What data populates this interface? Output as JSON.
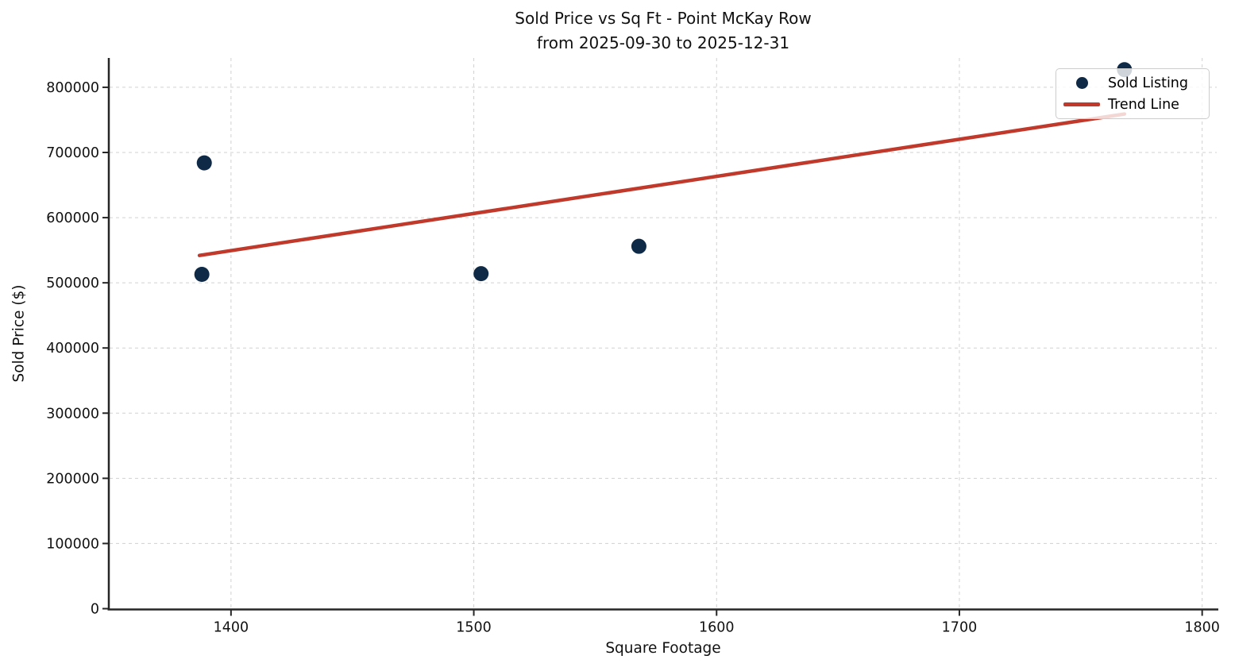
{
  "chart_data": {
    "type": "scatter",
    "title": "Sold Price vs Sq Ft - Point McKay Row",
    "subtitle": "from 2025-09-30 to 2025-12-31",
    "xlabel": "Square Footage",
    "ylabel": "Sold Price ($)",
    "xlim": [
      1350,
      1806
    ],
    "ylim": [
      0,
      845000
    ],
    "x_ticks": [
      1400,
      1500,
      1600,
      1700,
      1800
    ],
    "y_ticks": [
      0,
      100000,
      200000,
      300000,
      400000,
      500000,
      600000,
      700000,
      800000
    ],
    "grid": true,
    "grid_style": "dashed",
    "legend_position": "upper right",
    "background_color": "#ffffff",
    "grid_color": "#c9c9c9",
    "axis_color": "#262626",
    "text_color": "#111111",
    "series": [
      {
        "name": "Sold Listing",
        "kind": "scatter",
        "color": "#0E2A47",
        "marker_radius": 9.5,
        "points": [
          {
            "sqft": 1389,
            "price": 684000
          },
          {
            "sqft": 1388,
            "price": 513000
          },
          {
            "sqft": 1503,
            "price": 514000
          },
          {
            "sqft": 1568,
            "price": 556000
          },
          {
            "sqft": 1768,
            "price": 827000
          }
        ]
      },
      {
        "name": "Trend Line",
        "kind": "line",
        "color": "#C0392B",
        "line_width": 4.5,
        "points": [
          {
            "sqft": 1387,
            "price": 542000
          },
          {
            "sqft": 1768,
            "price": 759000
          }
        ]
      }
    ]
  }
}
